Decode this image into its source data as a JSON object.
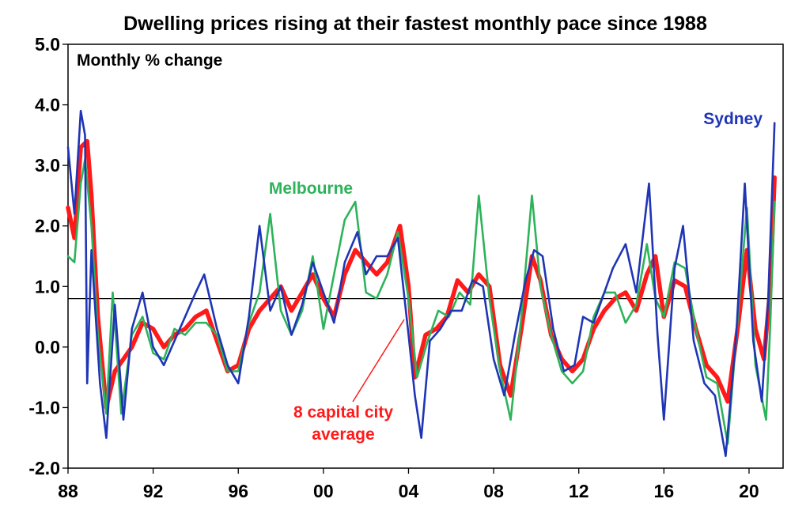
{
  "chart_data": {
    "type": "line",
    "title": "Dwelling prices rising at their fastest monthly pace since 1988",
    "ylabel": "Monthly % change",
    "xlabel": "",
    "ylim": [
      -2.0,
      5.0
    ],
    "xlim": [
      1988,
      2021.6
    ],
    "y_ticks": [
      -2.0,
      -1.0,
      0.0,
      1.0,
      2.0,
      3.0,
      4.0,
      5.0
    ],
    "y_tick_labels": [
      "-2.0",
      "-1.0",
      "0.0",
      "1.0",
      "2.0",
      "3.0",
      "4.0",
      "5.0"
    ],
    "x_ticks": [
      1988,
      1992,
      1996,
      2000,
      2004,
      2008,
      2012,
      2016,
      2020
    ],
    "x_tick_labels": [
      "88",
      "92",
      "96",
      "00",
      "04",
      "08",
      "12",
      "16",
      "20"
    ],
    "reference_line": 0.8,
    "grid": false,
    "annotations": {
      "sydney": "Sydney",
      "melbourne": "Melbourne",
      "average_line1": "8 capital city",
      "average_line2": "average"
    },
    "colors": {
      "sydney": "#1f35b5",
      "melbourne": "#2db35a",
      "average": "#ff1a1a",
      "reference": "#000000"
    },
    "series": [
      {
        "key": "average",
        "points": [
          [
            1988.0,
            2.3
          ],
          [
            1988.3,
            1.8
          ],
          [
            1988.6,
            3.3
          ],
          [
            1988.9,
            3.4
          ],
          [
            1989.1,
            2.5
          ],
          [
            1989.4,
            0.5
          ],
          [
            1989.8,
            -1.0
          ],
          [
            1990.2,
            -0.4
          ],
          [
            1990.6,
            -0.2
          ],
          [
            1991.0,
            0.0
          ],
          [
            1991.5,
            0.4
          ],
          [
            1992.0,
            0.3
          ],
          [
            1992.5,
            0.0
          ],
          [
            1993.0,
            0.2
          ],
          [
            1993.5,
            0.3
          ],
          [
            1994.0,
            0.5
          ],
          [
            1994.5,
            0.6
          ],
          [
            1995.0,
            0.1
          ],
          [
            1995.5,
            -0.4
          ],
          [
            1996.0,
            -0.3
          ],
          [
            1996.5,
            0.3
          ],
          [
            1997.0,
            0.6
          ],
          [
            1997.5,
            0.8
          ],
          [
            1998.0,
            1.0
          ],
          [
            1998.5,
            0.6
          ],
          [
            1999.0,
            0.9
          ],
          [
            1999.5,
            1.2
          ],
          [
            2000.0,
            0.8
          ],
          [
            2000.5,
            0.5
          ],
          [
            2001.0,
            1.2
          ],
          [
            2001.5,
            1.6
          ],
          [
            2002.0,
            1.4
          ],
          [
            2002.5,
            1.2
          ],
          [
            2003.0,
            1.4
          ],
          [
            2003.6,
            2.0
          ],
          [
            2004.0,
            1.0
          ],
          [
            2004.3,
            -0.5
          ],
          [
            2004.8,
            0.2
          ],
          [
            2005.3,
            0.3
          ],
          [
            2005.8,
            0.5
          ],
          [
            2006.3,
            1.1
          ],
          [
            2006.8,
            0.9
          ],
          [
            2007.3,
            1.2
          ],
          [
            2007.8,
            1.0
          ],
          [
            2008.3,
            -0.3
          ],
          [
            2008.8,
            -0.8
          ],
          [
            2009.3,
            0.3
          ],
          [
            2009.8,
            1.5
          ],
          [
            2010.2,
            1.1
          ],
          [
            2010.7,
            0.2
          ],
          [
            2011.2,
            -0.2
          ],
          [
            2011.7,
            -0.4
          ],
          [
            2012.2,
            -0.2
          ],
          [
            2012.7,
            0.3
          ],
          [
            2013.2,
            0.6
          ],
          [
            2013.7,
            0.8
          ],
          [
            2014.2,
            0.9
          ],
          [
            2014.7,
            0.6
          ],
          [
            2015.2,
            1.2
          ],
          [
            2015.6,
            1.5
          ],
          [
            2016.0,
            0.5
          ],
          [
            2016.5,
            1.1
          ],
          [
            2017.0,
            1.0
          ],
          [
            2017.5,
            0.3
          ],
          [
            2018.0,
            -0.3
          ],
          [
            2018.5,
            -0.5
          ],
          [
            2019.0,
            -0.9
          ],
          [
            2019.5,
            0.4
          ],
          [
            2019.9,
            1.6
          ],
          [
            2020.3,
            0.3
          ],
          [
            2020.7,
            -0.2
          ],
          [
            2021.0,
            1.0
          ],
          [
            2021.2,
            2.8
          ]
        ]
      },
      {
        "key": "melbourne",
        "points": [
          [
            1988.0,
            1.5
          ],
          [
            1988.3,
            1.4
          ],
          [
            1988.6,
            2.7
          ],
          [
            1988.8,
            3.1
          ],
          [
            1989.1,
            2.0
          ],
          [
            1989.4,
            0.2
          ],
          [
            1989.8,
            -1.1
          ],
          [
            1990.1,
            0.9
          ],
          [
            1990.5,
            -1.1
          ],
          [
            1991.0,
            0.2
          ],
          [
            1991.5,
            0.5
          ],
          [
            1992.0,
            -0.1
          ],
          [
            1992.5,
            -0.2
          ],
          [
            1993.0,
            0.3
          ],
          [
            1993.5,
            0.2
          ],
          [
            1994.0,
            0.4
          ],
          [
            1994.5,
            0.4
          ],
          [
            1995.0,
            0.2
          ],
          [
            1995.5,
            -0.4
          ],
          [
            1996.0,
            -0.4
          ],
          [
            1996.5,
            0.4
          ],
          [
            1997.0,
            0.9
          ],
          [
            1997.5,
            2.2
          ],
          [
            1998.0,
            0.6
          ],
          [
            1998.5,
            0.2
          ],
          [
            1999.0,
            0.6
          ],
          [
            1999.5,
            1.5
          ],
          [
            2000.0,
            0.3
          ],
          [
            2000.5,
            1.2
          ],
          [
            2001.0,
            2.1
          ],
          [
            2001.5,
            2.4
          ],
          [
            2002.0,
            0.9
          ],
          [
            2002.5,
            0.8
          ],
          [
            2003.0,
            1.2
          ],
          [
            2003.5,
            1.9
          ],
          [
            2004.0,
            0.8
          ],
          [
            2004.4,
            -0.5
          ],
          [
            2004.9,
            0.1
          ],
          [
            2005.4,
            0.6
          ],
          [
            2005.9,
            0.5
          ],
          [
            2006.4,
            0.9
          ],
          [
            2006.9,
            0.7
          ],
          [
            2007.3,
            2.5
          ],
          [
            2007.8,
            0.8
          ],
          [
            2008.3,
            -0.4
          ],
          [
            2008.8,
            -1.2
          ],
          [
            2009.3,
            0.5
          ],
          [
            2009.8,
            2.5
          ],
          [
            2010.2,
            1.0
          ],
          [
            2010.7,
            0.2
          ],
          [
            2011.2,
            -0.4
          ],
          [
            2011.7,
            -0.6
          ],
          [
            2012.2,
            -0.4
          ],
          [
            2012.7,
            0.5
          ],
          [
            2013.2,
            0.9
          ],
          [
            2013.7,
            0.9
          ],
          [
            2014.2,
            0.4
          ],
          [
            2014.7,
            0.7
          ],
          [
            2015.2,
            1.7
          ],
          [
            2015.6,
            0.8
          ],
          [
            2016.0,
            0.5
          ],
          [
            2016.5,
            1.4
          ],
          [
            2017.0,
            1.3
          ],
          [
            2017.5,
            0.3
          ],
          [
            2018.0,
            -0.5
          ],
          [
            2018.5,
            -0.6
          ],
          [
            2019.0,
            -1.6
          ],
          [
            2019.5,
            0.6
          ],
          [
            2019.9,
            2.3
          ],
          [
            2020.3,
            -0.3
          ],
          [
            2020.8,
            -1.2
          ],
          [
            2021.0,
            0.4
          ],
          [
            2021.2,
            2.4
          ]
        ]
      },
      {
        "key": "sydney",
        "points": [
          [
            1988.0,
            3.3
          ],
          [
            1988.3,
            2.2
          ],
          [
            1988.6,
            3.9
          ],
          [
            1988.8,
            3.5
          ],
          [
            1988.9,
            -0.6
          ],
          [
            1989.1,
            1.6
          ],
          [
            1989.5,
            -0.6
          ],
          [
            1989.8,
            -1.5
          ],
          [
            1990.2,
            0.7
          ],
          [
            1990.6,
            -1.2
          ],
          [
            1991.0,
            0.3
          ],
          [
            1991.5,
            0.9
          ],
          [
            1992.0,
            0.0
          ],
          [
            1992.5,
            -0.3
          ],
          [
            1993.0,
            0.1
          ],
          [
            1993.5,
            0.5
          ],
          [
            1994.0,
            0.9
          ],
          [
            1994.4,
            1.2
          ],
          [
            1995.0,
            0.3
          ],
          [
            1995.5,
            -0.3
          ],
          [
            1996.0,
            -0.6
          ],
          [
            1996.5,
            0.5
          ],
          [
            1997.0,
            2.0
          ],
          [
            1997.5,
            0.6
          ],
          [
            1998.0,
            1.0
          ],
          [
            1998.5,
            0.2
          ],
          [
            1999.0,
            0.7
          ],
          [
            1999.5,
            1.4
          ],
          [
            2000.0,
            0.9
          ],
          [
            2000.5,
            0.4
          ],
          [
            2001.0,
            1.4
          ],
          [
            2001.6,
            1.9
          ],
          [
            2002.0,
            1.2
          ],
          [
            2002.5,
            1.5
          ],
          [
            2003.0,
            1.5
          ],
          [
            2003.5,
            1.8
          ],
          [
            2004.0,
            0.2
          ],
          [
            2004.3,
            -0.8
          ],
          [
            2004.6,
            -1.5
          ],
          [
            2005.0,
            0.1
          ],
          [
            2005.5,
            0.3
          ],
          [
            2006.0,
            0.6
          ],
          [
            2006.5,
            0.6
          ],
          [
            2007.0,
            1.1
          ],
          [
            2007.5,
            1.0
          ],
          [
            2008.0,
            -0.2
          ],
          [
            2008.5,
            -0.8
          ],
          [
            2009.0,
            0.2
          ],
          [
            2009.5,
            1.1
          ],
          [
            2009.9,
            1.6
          ],
          [
            2010.3,
            1.5
          ],
          [
            2010.8,
            0.3
          ],
          [
            2011.3,
            -0.4
          ],
          [
            2011.8,
            -0.3
          ],
          [
            2012.2,
            0.5
          ],
          [
            2012.7,
            0.4
          ],
          [
            2013.2,
            0.9
          ],
          [
            2013.6,
            1.3
          ],
          [
            2014.2,
            1.7
          ],
          [
            2014.7,
            0.9
          ],
          [
            2015.3,
            2.7
          ],
          [
            2015.7,
            0.2
          ],
          [
            2016.0,
            -1.2
          ],
          [
            2016.5,
            1.3
          ],
          [
            2016.9,
            2.0
          ],
          [
            2017.4,
            0.1
          ],
          [
            2017.9,
            -0.6
          ],
          [
            2018.4,
            -0.8
          ],
          [
            2018.9,
            -1.8
          ],
          [
            2019.4,
            0.2
          ],
          [
            2019.8,
            2.7
          ],
          [
            2020.2,
            0.1
          ],
          [
            2020.6,
            -0.9
          ],
          [
            2020.9,
            0.8
          ],
          [
            2021.2,
            3.7
          ]
        ]
      }
    ]
  }
}
